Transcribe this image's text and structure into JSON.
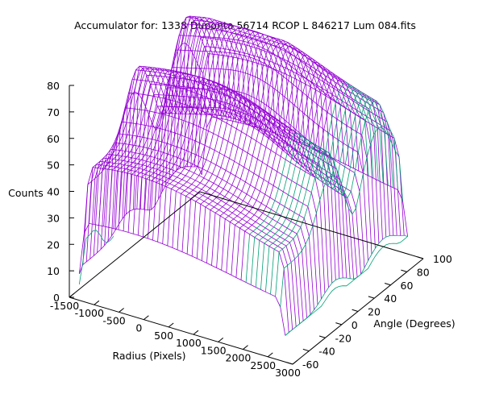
{
  "chart_data": {
    "type": "surface",
    "title": "Accumulator for: 1338 Duponta 56714 RCOP L 846217 Lum 084.fits",
    "xlabel": "Radius (Pixels)",
    "ylabel": "Angle (Degrees)",
    "zlabel": "Counts",
    "xlim": [
      -1500,
      3000
    ],
    "ylim": [
      -60,
      100
    ],
    "zlim": [
      0,
      80
    ],
    "x_ticks": [
      "-1500",
      "-1000",
      "-500",
      "0",
      "500",
      "1000",
      "1500",
      "2000",
      "2500",
      "3000"
    ],
    "y_ticks": [
      "-60",
      "-40",
      "-20",
      "0",
      "20",
      "40",
      "60",
      "80",
      "100"
    ],
    "z_ticks": [
      "0",
      "10",
      "20",
      "30",
      "40",
      "50",
      "60",
      "70",
      "80"
    ],
    "surface": {
      "radius_range": [
        -1300,
        2850
      ],
      "angle_range": [
        -60,
        90
      ],
      "features": [
        {
          "description_value": "rim rises steeply near angle -60 and 90",
          "counts_min": 10,
          "counts_max": 60
        },
        {
          "ridge_angle": 0,
          "counts": 75
        },
        {
          "ridge_angle": 60,
          "counts": 78
        },
        {
          "valley_angle": 30,
          "counts": 52
        }
      ]
    },
    "colors": {
      "surface_top": "#9400d3",
      "surface_bottom": "#009e73",
      "axis": "#000000"
    },
    "grid": false
  }
}
